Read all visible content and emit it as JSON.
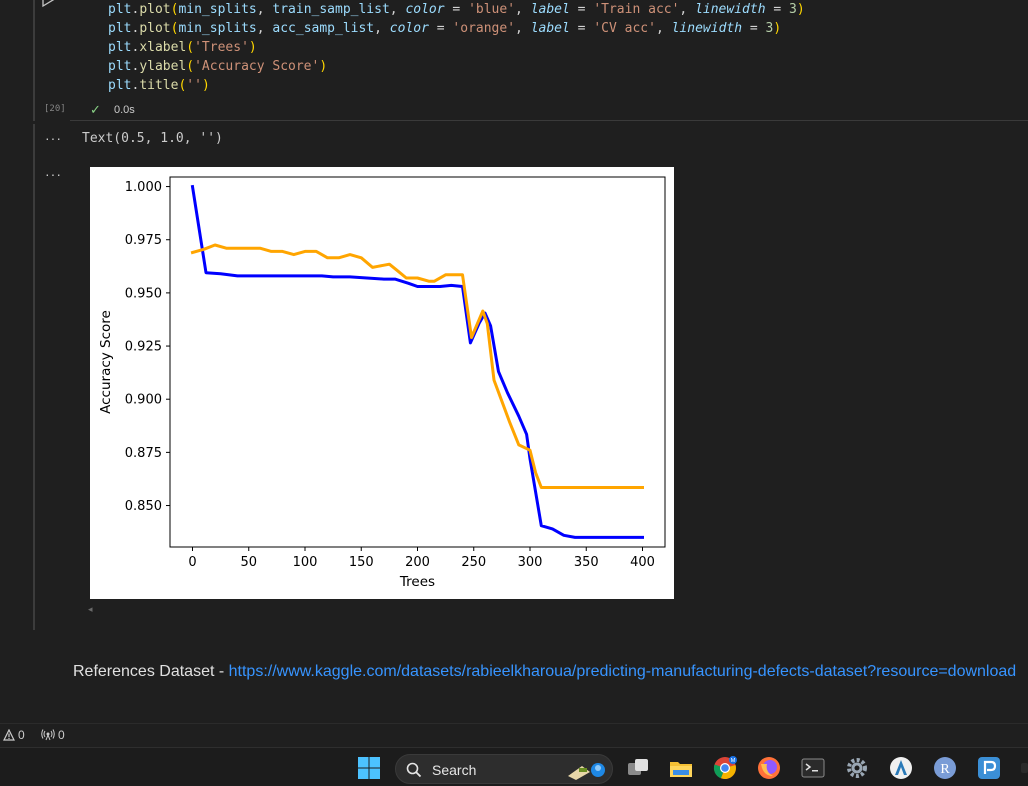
{
  "code": {
    "execution_count": "[20]",
    "status_time": "0.0s"
  },
  "output": {
    "menu_1": "···",
    "menu_2": "···",
    "text_result": "Text(0.5, 1.0, '')"
  },
  "chart_data": {
    "type": "line",
    "title": "",
    "xlabel": "Trees",
    "ylabel": "Accuracy Score",
    "xlim": [
      -20,
      420
    ],
    "ylim": [
      0.8305,
      1.0045
    ],
    "x_ticks": [
      0,
      50,
      100,
      150,
      200,
      250,
      300,
      350,
      400
    ],
    "x_tick_labels": [
      "0",
      "50",
      "100",
      "150",
      "200",
      "250",
      "300",
      "350",
      "400"
    ],
    "y_ticks": [
      0.85,
      0.875,
      0.9,
      0.925,
      0.95,
      0.975,
      1.0
    ],
    "y_tick_labels": [
      "0.850",
      "0.875",
      "0.900",
      "0.925",
      "0.950",
      "0.975",
      "1.000"
    ],
    "series": [
      {
        "color": "#0000ff",
        "x": [
          0,
          12,
          25,
          40,
          60,
          80,
          100,
          115,
          125,
          140,
          155,
          170,
          180,
          192,
          200,
          210,
          220,
          230,
          240,
          247,
          255,
          260,
          265,
          272,
          280,
          290,
          297,
          300,
          310,
          320,
          330,
          340,
          350,
          360,
          370,
          380,
          390,
          400
        ],
        "y": [
          1.0,
          0.9595,
          0.959,
          0.958,
          0.958,
          0.958,
          0.958,
          0.958,
          0.9575,
          0.9575,
          0.957,
          0.9565,
          0.9565,
          0.9545,
          0.953,
          0.953,
          0.953,
          0.9535,
          0.953,
          0.9265,
          0.936,
          0.9405,
          0.9345,
          0.913,
          0.903,
          0.892,
          0.8835,
          0.872,
          0.8405,
          0.839,
          0.836,
          0.835,
          0.835,
          0.835,
          0.835,
          0.835,
          0.835,
          0.835
        ]
      },
      {
        "color": "#ffa500",
        "x": [
          0,
          10,
          20,
          30,
          40,
          50,
          60,
          70,
          80,
          90,
          100,
          110,
          120,
          130,
          140,
          150,
          160,
          165,
          175,
          182,
          190,
          200,
          210,
          215,
          225,
          235,
          240,
          248,
          258,
          262,
          268,
          275,
          282,
          290,
          300,
          305,
          310,
          320,
          340,
          360,
          380,
          400
        ],
        "y": [
          0.969,
          0.9705,
          0.9725,
          0.971,
          0.971,
          0.971,
          0.971,
          0.9695,
          0.9695,
          0.968,
          0.9695,
          0.9695,
          0.9665,
          0.9665,
          0.968,
          0.9665,
          0.962,
          0.9625,
          0.9635,
          0.9605,
          0.957,
          0.957,
          0.9555,
          0.9555,
          0.9585,
          0.9585,
          0.9585,
          0.929,
          0.9415,
          0.9355,
          0.909,
          0.899,
          0.889,
          0.8785,
          0.876,
          0.8655,
          0.8585,
          0.8585,
          0.8585,
          0.8585,
          0.8585,
          0.8585
        ]
      }
    ],
    "grid": false,
    "legend": "none"
  },
  "markdown": {
    "prefix": "References Dataset - ",
    "link_text": "https://www.kaggle.com/datasets/rabieelkharoua/predicting-manufacturing-defects-dataset?resource=download"
  },
  "statusbar": {
    "problems_count": "0",
    "ports_count": "0"
  },
  "taskbar": {
    "search_label": "Search",
    "chrome_badge": "M"
  }
}
